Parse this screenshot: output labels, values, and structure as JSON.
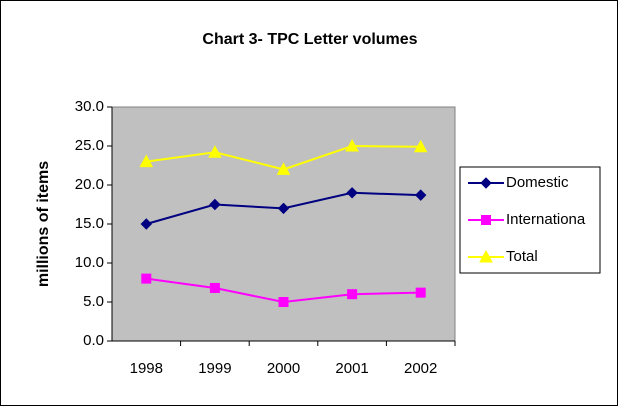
{
  "chart_data": {
    "type": "line",
    "title": "Chart 3- TPC Letter volumes",
    "y_label": "millions of items",
    "categories": [
      "1998",
      "1999",
      "2000",
      "2001",
      "2002"
    ],
    "series": [
      {
        "name": "Domestic",
        "color": "#000080",
        "marker": "diamond",
        "values": [
          15.0,
          17.5,
          17.0,
          19.0,
          18.7
        ]
      },
      {
        "name": "Internationa",
        "color": "#ff00ff",
        "marker": "square",
        "values": [
          8.0,
          6.8,
          5.0,
          6.0,
          6.2
        ]
      },
      {
        "name": "Total",
        "color": "#ffff00",
        "marker": "triangle",
        "values": [
          23.0,
          24.2,
          22.0,
          25.0,
          24.9
        ]
      }
    ],
    "ylim": [
      0,
      30
    ],
    "yticks": [
      {
        "value": 0,
        "label": "0.0"
      },
      {
        "value": 5,
        "label": "5.0"
      },
      {
        "value": 10,
        "label": "10.0"
      },
      {
        "value": 15,
        "label": "15.0"
      },
      {
        "value": 20,
        "label": "20.0"
      },
      {
        "value": 25,
        "label": "25.0"
      },
      {
        "value": 30,
        "label": "30.0"
      }
    ],
    "plot_background": "#c0c0c0",
    "legend": "right"
  }
}
